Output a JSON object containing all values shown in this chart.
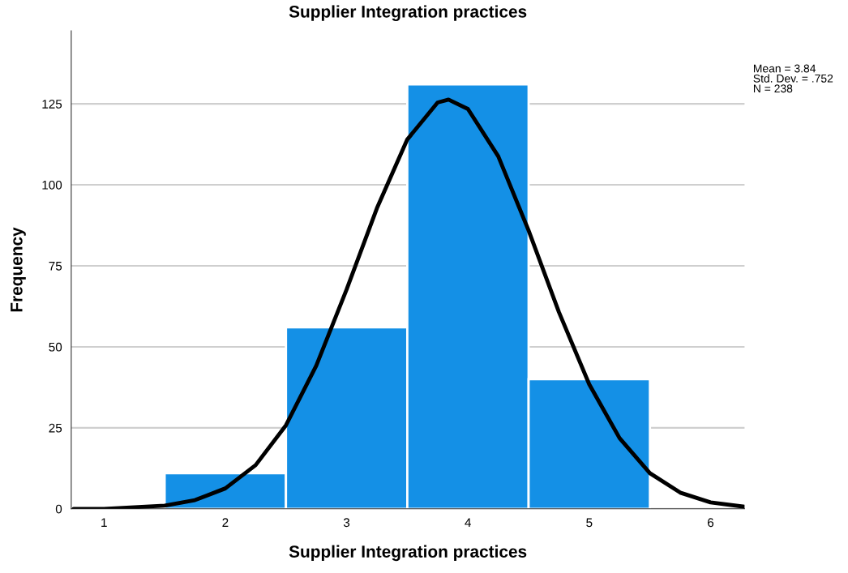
{
  "chart_data": {
    "type": "histogram",
    "title": "Supplier Integration practices",
    "xlabel": "Supplier Integration practices",
    "ylabel": "Frequency",
    "bins": [
      1.5,
      2.5,
      3.5,
      4.5,
      5.5
    ],
    "values": [
      11,
      56,
      131,
      40
    ],
    "color": "#1490e6",
    "series": [
      {
        "type": "line",
        "color": "#000000",
        "x": [
          0.75,
          1.0,
          1.5,
          1.75,
          2.0,
          2.25,
          2.5,
          2.75,
          3.0,
          3.25,
          3.5,
          3.75,
          3.84,
          4.0,
          4.25,
          4.5,
          4.75,
          5.0,
          5.25,
          5.5,
          5.75,
          6.0,
          6.28
        ],
        "values": [
          0,
          0,
          1.0,
          2.7,
          6.3,
          13.5,
          25.8,
          44.2,
          67.7,
          92.8,
          114.0,
          125.4,
          126.3,
          123.4,
          108.8,
          85.9,
          60.7,
          38.4,
          21.8,
          11.0,
          5.0,
          2.0,
          0.65
        ]
      }
    ],
    "xlim": [
      0.73,
      6.28
    ],
    "xticks": [
      1,
      2,
      3,
      4,
      5,
      6
    ],
    "ylim": [
      0,
      147.5
    ],
    "yticks": [
      0,
      25,
      50,
      75,
      100,
      125
    ],
    "grid": "y",
    "legend": false,
    "marker": "none",
    "line_style": "solid",
    "annotations": [
      "Mean = 3.84",
      "Std. Dev. = .752",
      "N = 238"
    ]
  }
}
